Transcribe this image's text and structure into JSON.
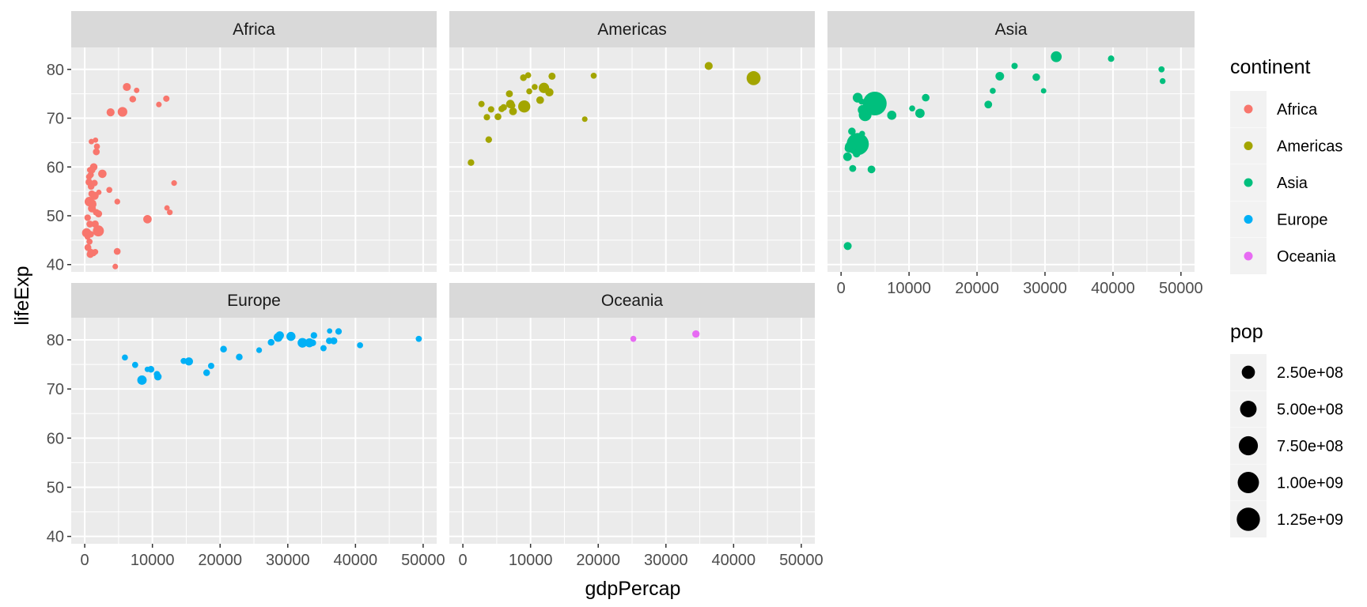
{
  "chart_data": {
    "type": "scatter",
    "facet_by": "continent",
    "xlabel": "gdpPercap",
    "ylabel": "lifeExp",
    "xlim": [
      -2000,
      52000
    ],
    "ylim": [
      38.5,
      84.5
    ],
    "x_ticks": [
      0,
      10000,
      20000,
      30000,
      40000,
      50000
    ],
    "y_ticks": [
      40,
      50,
      60,
      70,
      80
    ],
    "grid": true,
    "legend_position": "right",
    "color_legend": {
      "title": "continent",
      "entries": [
        {
          "label": "Africa",
          "color": "#F8766D"
        },
        {
          "label": "Americas",
          "color": "#A3A500"
        },
        {
          "label": "Asia",
          "color": "#00BF7D"
        },
        {
          "label": "Europe",
          "color": "#00B0F6"
        },
        {
          "label": "Oceania",
          "color": "#E76BF3"
        }
      ]
    },
    "size_legend": {
      "title": "pop",
      "entries": [
        {
          "label": "2.50e+08",
          "value": 250000000
        },
        {
          "label": "5.00e+08",
          "value": 500000000
        },
        {
          "label": "7.50e+08",
          "value": 750000000
        },
        {
          "label": "1.00e+09",
          "value": 1000000000
        },
        {
          "label": "1.25e+09",
          "value": 1250000000
        }
      ]
    },
    "panels": [
      {
        "title": "Africa",
        "points": [
          [
            6223,
            76.4,
            33
          ],
          [
            4797,
            42.7,
            12
          ],
          [
            1441,
            56.7,
            8
          ],
          [
            12570,
            50.7,
            1.6
          ],
          [
            1217,
            52.3,
            14
          ],
          [
            430,
            49.6,
            8.4
          ],
          [
            2042,
            50.4,
            17
          ],
          [
            706,
            44.7,
            4.4
          ],
          [
            1704,
            50.7,
            10
          ],
          [
            986,
            65.2,
            0.7
          ],
          [
            278,
            46.5,
            65
          ],
          [
            3633,
            55.3,
            3.8
          ],
          [
            1545,
            48.3,
            18
          ],
          [
            2082,
            54.8,
            0.5
          ],
          [
            5581,
            71.3,
            80
          ],
          [
            12154,
            51.6,
            0.55
          ],
          [
            641,
            58.0,
            4.9
          ],
          [
            690,
            52.9,
            77
          ],
          [
            13206,
            56.7,
            1.5
          ],
          [
            753,
            59.4,
            1.7
          ],
          [
            1328,
            60.0,
            23
          ],
          [
            943,
            56.0,
            9.9
          ],
          [
            580,
            46.4,
            1.5
          ],
          [
            1463,
            54.1,
            36
          ],
          [
            1569,
            42.6,
            2.0
          ],
          [
            415,
            45.7,
            3.2
          ],
          [
            12057,
            74.0,
            6.0
          ],
          [
            1045,
            59.4,
            19
          ],
          [
            759,
            48.3,
            13
          ],
          [
            1042,
            54.5,
            12
          ],
          [
            1803,
            64.2,
            3.3
          ],
          [
            10957,
            72.8,
            1.25
          ],
          [
            3820,
            71.2,
            34
          ],
          [
            824,
            42.1,
            20
          ],
          [
            4811,
            52.9,
            2.1
          ],
          [
            620,
            56.9,
            12.9
          ],
          [
            2014,
            46.9,
            135
          ],
          [
            7670,
            75.7,
            0.8
          ],
          [
            882,
            46.2,
            8.9
          ],
          [
            1598,
            65.5,
            0.2
          ],
          [
            1712,
            63.1,
            12
          ],
          [
            862,
            42.6,
            6.1
          ],
          [
            9270,
            49.3,
            44
          ],
          [
            2602,
            58.6,
            42
          ],
          [
            4513,
            39.6,
            1.1
          ],
          [
            1107,
            52.5,
            38
          ],
          [
            883,
            58.4,
            5.7
          ],
          [
            7093,
            73.9,
            10
          ],
          [
            1056,
            51.5,
            30
          ],
          [
            1271,
            42.4,
            11.7
          ],
          [
            470,
            43.5,
            12.3
          ]
        ]
      },
      {
        "title": "Americas",
        "points": [
          [
            12779,
            75.3,
            40
          ],
          [
            3822,
            65.6,
            9.1
          ],
          [
            9066,
            72.4,
            190
          ],
          [
            36319,
            80.7,
            33
          ],
          [
            13172,
            78.6,
            16
          ],
          [
            7007,
            72.9,
            44
          ],
          [
            9645,
            78.8,
            4.1
          ],
          [
            8948,
            78.3,
            11
          ],
          [
            6025,
            72.2,
            9.3
          ],
          [
            6873,
            75.0,
            13.8
          ],
          [
            5728,
            71.9,
            6.9
          ],
          [
            5186,
            70.3,
            12.6
          ],
          [
            1202,
            60.9,
            8.5
          ],
          [
            3548,
            70.2,
            7.5
          ],
          [
            7321,
            72.6,
            2.8
          ],
          [
            11978,
            76.2,
            108
          ],
          [
            2749,
            72.9,
            5.7
          ],
          [
            9809,
            75.5,
            3.2
          ],
          [
            4173,
            71.8,
            6.7
          ],
          [
            7409,
            71.4,
            28
          ],
          [
            19329,
            78.7,
            4.0
          ],
          [
            18009,
            69.8,
            1.1
          ],
          [
            42952,
            78.2,
            301
          ],
          [
            10611,
            76.4,
            3.4
          ],
          [
            11416,
            73.7,
            26
          ]
        ]
      },
      {
        "title": "Asia",
        "points": [
          [
            975,
            43.8,
            32
          ],
          [
            29796,
            75.6,
            0.7
          ],
          [
            1391,
            64.1,
            150
          ],
          [
            1714,
            59.7,
            14
          ],
          [
            4959,
            73.0,
            1319
          ],
          [
            39725,
            82.2,
            6.9
          ],
          [
            2452,
            64.7,
            1110
          ],
          [
            3541,
            70.7,
            224
          ],
          [
            11606,
            71.0,
            69
          ],
          [
            4471,
            59.5,
            27
          ],
          [
            25523,
            80.7,
            6.4
          ],
          [
            31656,
            82.6,
            127
          ],
          [
            4519,
            72.5,
            6.1
          ],
          [
            1593,
            67.3,
            23
          ],
          [
            23348,
            78.6,
            49
          ],
          [
            47307,
            77.6,
            2.5
          ],
          [
            10461,
            72.0,
            3.9
          ],
          [
            12452,
            74.2,
            24
          ],
          [
            3096,
            66.8,
            2.9
          ],
          [
            944,
            62.1,
            47
          ],
          [
            1091,
            63.8,
            28
          ],
          [
            22316,
            75.6,
            3.2
          ],
          [
            2606,
            65.5,
            169
          ],
          [
            3190,
            71.7,
            91
          ],
          [
            21655,
            72.8,
            27
          ],
          [
            47143,
            80.0,
            4.6
          ],
          [
            3970,
            72.4,
            20
          ],
          [
            4185,
            74.1,
            19
          ],
          [
            28718,
            78.4,
            23
          ],
          [
            7458,
            70.6,
            65
          ],
          [
            2442,
            74.2,
            85
          ],
          [
            3025,
            73.4,
            4.0
          ],
          [
            2281,
            62.7,
            22
          ]
        ]
      },
      {
        "title": "Europe",
        "points": [
          [
            5937,
            76.4,
            3.6
          ],
          [
            36126,
            79.8,
            8.2
          ],
          [
            33693,
            79.4,
            10.4
          ],
          [
            7447,
            74.9,
            4.6
          ],
          [
            10681,
            73.0,
            7.3
          ],
          [
            14619,
            75.7,
            4.5
          ],
          [
            22833,
            76.5,
            10.2
          ],
          [
            35278,
            78.3,
            5.5
          ],
          [
            33207,
            79.3,
            5.2
          ],
          [
            30470,
            80.7,
            61
          ],
          [
            32170,
            79.4,
            82
          ],
          [
            27538,
            79.5,
            10.7
          ],
          [
            18009,
            73.3,
            10
          ],
          [
            36181,
            81.8,
            0.3
          ],
          [
            40676,
            78.9,
            4.1
          ],
          [
            28570,
            80.5,
            58
          ],
          [
            9254,
            74.0,
            0.7
          ],
          [
            36798,
            79.8,
            16.6
          ],
          [
            49357,
            80.2,
            4.6
          ],
          [
            15390,
            75.6,
            38.5
          ],
          [
            20510,
            78.1,
            10.6
          ],
          [
            10808,
            72.5,
            22.3
          ],
          [
            9787,
            74.0,
            10.2
          ],
          [
            18678,
            74.7,
            5.4
          ],
          [
            25768,
            77.9,
            2.0
          ],
          [
            28821,
            80.9,
            40.4
          ],
          [
            33860,
            80.9,
            9.0
          ],
          [
            37506,
            81.7,
            7.6
          ],
          [
            8458,
            71.8,
            71.2
          ],
          [
            33203,
            79.4,
            60.8
          ]
        ]
      },
      {
        "title": "Oceania",
        "points": [
          [
            34435,
            81.2,
            20.4
          ],
          [
            25185,
            80.2,
            4.1
          ]
        ]
      }
    ]
  }
}
